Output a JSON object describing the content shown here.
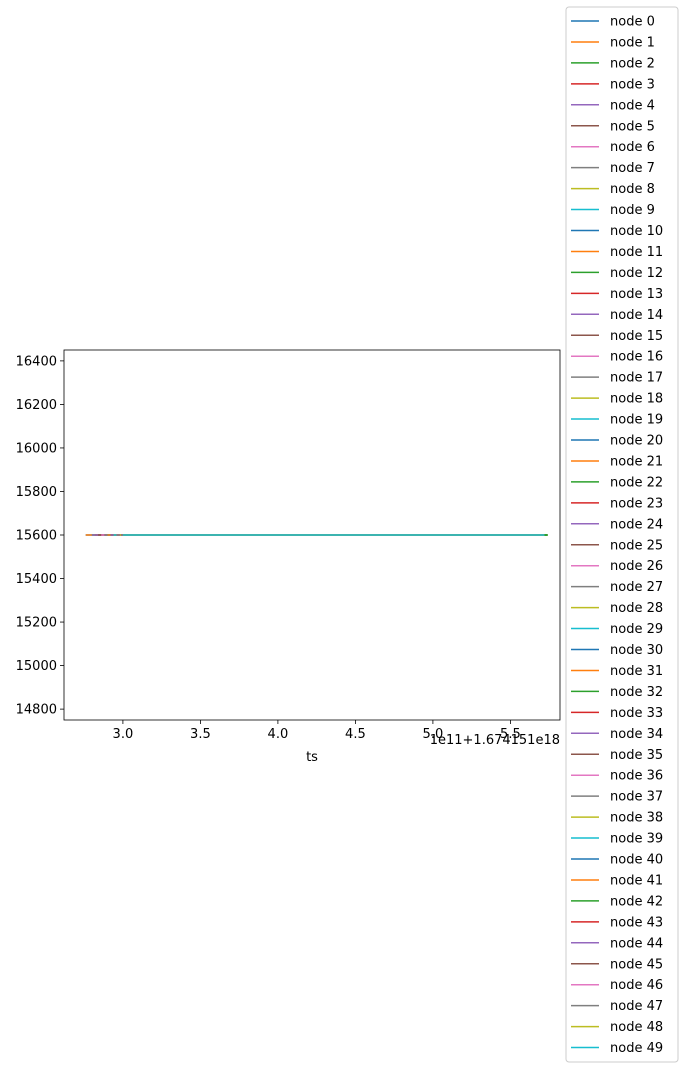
{
  "chart_data": {
    "type": "line",
    "title": "",
    "xlabel": "ts",
    "ylabel": "",
    "x_offset_label": "1e11+1.674151e18",
    "xlim": [
      2.62,
      5.82
    ],
    "ylim": [
      14750,
      16450
    ],
    "xticks": [
      3.0,
      3.5,
      4.0,
      4.5,
      5.0,
      5.5
    ],
    "xtick_labels": [
      "3.0",
      "3.5",
      "4.0",
      "4.5",
      "5.0",
      "5.5"
    ],
    "yticks": [
      14800,
      15000,
      15200,
      15400,
      15600,
      15800,
      16000,
      16200,
      16400
    ],
    "ytick_labels": [
      "14800",
      "15000",
      "15200",
      "15400",
      "15600",
      "15800",
      "16000",
      "16200",
      "16400"
    ],
    "legend_position": "outside-right",
    "palette": [
      "#1f77b4",
      "#ff7f0e",
      "#2ca02c",
      "#d62728",
      "#9467bd",
      "#8c564b",
      "#e377c2",
      "#7f7f7f",
      "#bcbd22",
      "#17becf"
    ],
    "series": [
      {
        "name": "node 0",
        "x": [
          2.76,
          5.72
        ],
        "y": [
          15600,
          15600
        ]
      },
      {
        "name": "node 1",
        "x": [
          2.76,
          5.72
        ],
        "y": [
          15600,
          15600
        ]
      },
      {
        "name": "node 2",
        "x": [
          2.8,
          5.74
        ],
        "y": [
          15600,
          15600
        ]
      },
      {
        "name": "node 3",
        "x": [
          2.82,
          5.74
        ],
        "y": [
          15600,
          15600
        ]
      },
      {
        "name": "node 4",
        "x": [
          2.8,
          5.72
        ],
        "y": [
          15600,
          15600
        ]
      },
      {
        "name": "node 5",
        "x": [
          2.84,
          5.72
        ],
        "y": [
          15600,
          15600
        ]
      },
      {
        "name": "node 6",
        "x": [
          2.86,
          5.72
        ],
        "y": [
          15600,
          15600
        ]
      },
      {
        "name": "node 7",
        "x": [
          2.88,
          5.72
        ],
        "y": [
          15600,
          15600
        ]
      },
      {
        "name": "node 8",
        "x": [
          2.9,
          5.72
        ],
        "y": [
          15600,
          15600
        ]
      },
      {
        "name": "node 9",
        "x": [
          2.9,
          5.72
        ],
        "y": [
          15600,
          15600
        ]
      },
      {
        "name": "node 10",
        "x": [
          2.9,
          5.72
        ],
        "y": [
          15600,
          15600
        ]
      },
      {
        "name": "node 11",
        "x": [
          2.9,
          5.72
        ],
        "y": [
          15600,
          15600
        ]
      },
      {
        "name": "node 12",
        "x": [
          2.92,
          5.74
        ],
        "y": [
          15600,
          15600
        ]
      },
      {
        "name": "node 13",
        "x": [
          2.92,
          5.72
        ],
        "y": [
          15600,
          15600
        ]
      },
      {
        "name": "node 14",
        "x": [
          2.92,
          5.72
        ],
        "y": [
          15600,
          15600
        ]
      },
      {
        "name": "node 15",
        "x": [
          2.94,
          5.72
        ],
        "y": [
          15600,
          15600
        ]
      },
      {
        "name": "node 16",
        "x": [
          2.94,
          5.72
        ],
        "y": [
          15600,
          15600
        ]
      },
      {
        "name": "node 17",
        "x": [
          2.94,
          5.72
        ],
        "y": [
          15600,
          15600
        ]
      },
      {
        "name": "node 18",
        "x": [
          2.94,
          5.72
        ],
        "y": [
          15600,
          15600
        ]
      },
      {
        "name": "node 19",
        "x": [
          2.94,
          5.72
        ],
        "y": [
          15600,
          15600
        ]
      },
      {
        "name": "node 20",
        "x": [
          2.96,
          5.72
        ],
        "y": [
          15600,
          15600
        ]
      },
      {
        "name": "node 21",
        "x": [
          2.96,
          5.72
        ],
        "y": [
          15600,
          15600
        ]
      },
      {
        "name": "node 22",
        "x": [
          2.96,
          5.74
        ],
        "y": [
          15600,
          15600
        ]
      },
      {
        "name": "node 23",
        "x": [
          2.96,
          5.72
        ],
        "y": [
          15600,
          15600
        ]
      },
      {
        "name": "node 24",
        "x": [
          2.96,
          5.72
        ],
        "y": [
          15600,
          15600
        ]
      },
      {
        "name": "node 25",
        "x": [
          2.96,
          5.72
        ],
        "y": [
          15600,
          15600
        ]
      },
      {
        "name": "node 26",
        "x": [
          2.96,
          5.72
        ],
        "y": [
          15600,
          15600
        ]
      },
      {
        "name": "node 27",
        "x": [
          2.96,
          5.72
        ],
        "y": [
          15600,
          15600
        ]
      },
      {
        "name": "node 28",
        "x": [
          2.98,
          5.72
        ],
        "y": [
          15600,
          15600
        ]
      },
      {
        "name": "node 29",
        "x": [
          2.98,
          5.72
        ],
        "y": [
          15600,
          15600
        ]
      },
      {
        "name": "node 30",
        "x": [
          2.98,
          5.72
        ],
        "y": [
          15600,
          15600
        ]
      },
      {
        "name": "node 31",
        "x": [
          2.98,
          5.72
        ],
        "y": [
          15600,
          15600
        ]
      },
      {
        "name": "node 32",
        "x": [
          2.98,
          5.74
        ],
        "y": [
          15600,
          15600
        ]
      },
      {
        "name": "node 33",
        "x": [
          2.98,
          5.72
        ],
        "y": [
          15600,
          15600
        ]
      },
      {
        "name": "node 34",
        "x": [
          2.98,
          5.72
        ],
        "y": [
          15600,
          15600
        ]
      },
      {
        "name": "node 35",
        "x": [
          2.98,
          5.72
        ],
        "y": [
          15600,
          15600
        ]
      },
      {
        "name": "node 36",
        "x": [
          2.98,
          5.72
        ],
        "y": [
          15600,
          15600
        ]
      },
      {
        "name": "node 37",
        "x": [
          2.98,
          5.72
        ],
        "y": [
          15600,
          15600
        ]
      },
      {
        "name": "node 38",
        "x": [
          2.98,
          5.72
        ],
        "y": [
          15600,
          15600
        ]
      },
      {
        "name": "node 39",
        "x": [
          2.99,
          5.72
        ],
        "y": [
          15600,
          15600
        ]
      },
      {
        "name": "node 40",
        "x": [
          2.99,
          5.72
        ],
        "y": [
          15600,
          15600
        ]
      },
      {
        "name": "node 41",
        "x": [
          2.99,
          5.72
        ],
        "y": [
          15600,
          15600
        ]
      },
      {
        "name": "node 42",
        "x": [
          2.99,
          5.74
        ],
        "y": [
          15600,
          15600
        ]
      },
      {
        "name": "node 43",
        "x": [
          2.99,
          5.72
        ],
        "y": [
          15600,
          15600
        ]
      },
      {
        "name": "node 44",
        "x": [
          2.99,
          5.72
        ],
        "y": [
          15600,
          15600
        ]
      },
      {
        "name": "node 45",
        "x": [
          2.99,
          5.72
        ],
        "y": [
          15600,
          15600
        ]
      },
      {
        "name": "node 46",
        "x": [
          2.99,
          5.72
        ],
        "y": [
          15600,
          15600
        ]
      },
      {
        "name": "node 47",
        "x": [
          2.99,
          5.72
        ],
        "y": [
          15600,
          15600
        ]
      },
      {
        "name": "node 48",
        "x": [
          3.0,
          5.72
        ],
        "y": [
          15600,
          15600
        ]
      },
      {
        "name": "node 49",
        "x": [
          3.0,
          5.72
        ],
        "y": [
          15600,
          15600
        ]
      }
    ]
  }
}
